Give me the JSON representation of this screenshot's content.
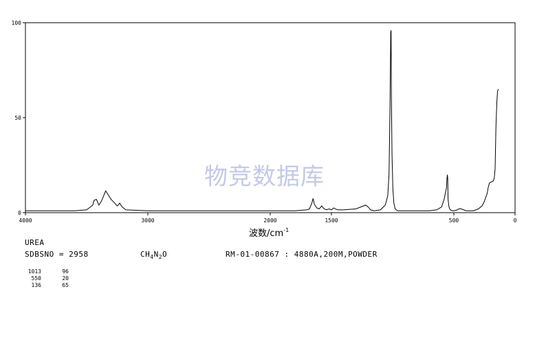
{
  "compound": "UREA",
  "sdbs": "SDBSNO = 2958",
  "formula": {
    "c": "CH",
    "h_sub": "4",
    "n": "N",
    "n_sub": "2",
    "o": "O"
  },
  "method": "RM-01-00867 : 4880A,200M,POWDER",
  "watermark": "物竞数据库",
  "peaks": [
    {
      "x": "1013",
      "y": "96"
    },
    {
      "x": "550",
      "y": "20"
    },
    {
      "x": "136",
      "y": "65"
    }
  ],
  "chart_data": {
    "type": "line",
    "title": "",
    "xlabel": "波数/cm",
    "xlabel_sup": "-1",
    "ylabel": "",
    "xlim": [
      4000,
      0
    ],
    "ylim": [
      0,
      100
    ],
    "x_ticks": [
      4000,
      3000,
      2000,
      1500,
      500,
      0
    ],
    "x_tick_labels": [
      "4000",
      "3000",
      "2000",
      "1500",
      "500",
      "0"
    ],
    "y_ticks": [
      0,
      50,
      100
    ],
    "y_tick_labels": [
      "0",
      "50",
      "100"
    ],
    "series": [
      {
        "x": [
          4000,
          3600,
          3500,
          3450,
          3440,
          3420,
          3400,
          3380,
          3360,
          3345,
          3330,
          3300,
          3270,
          3250,
          3230,
          3210,
          3180,
          3000,
          2500,
          2000,
          1800,
          1700,
          1680,
          1660,
          1650,
          1640,
          1620,
          1600,
          1580,
          1560,
          1540,
          1520,
          1500,
          1480,
          1470,
          1450,
          1400,
          1300,
          1220,
          1200,
          1180,
          1150,
          1100,
          1060,
          1040,
          1030,
          1022,
          1016,
          1013,
          1010,
          1005,
          998,
          990,
          980,
          960,
          900,
          800,
          700,
          640,
          600,
          580,
          570,
          560,
          556,
          553,
          550,
          547,
          540,
          530,
          510,
          500,
          470,
          460,
          440,
          400,
          340,
          300,
          270,
          250,
          240,
          228,
          220,
          210,
          200,
          180,
          170,
          163,
          156,
          149,
          143,
          136
        ],
        "y": [
          1,
          1,
          1.5,
          4,
          6.5,
          7,
          4,
          6,
          9,
          11.5,
          10,
          7,
          5,
          3.5,
          5,
          3,
          1.5,
          1,
          1,
          1,
          1,
          1.5,
          2,
          5,
          7.5,
          4.5,
          2.5,
          2,
          3.5,
          2,
          1.5,
          2,
          1.5,
          2.5,
          2,
          1.5,
          1.5,
          2,
          4,
          3,
          1.5,
          1,
          1.5,
          4,
          9,
          20,
          54,
          95,
          96,
          60,
          30,
          12,
          5,
          2,
          1,
          1,
          1,
          1,
          1.5,
          3,
          7,
          10,
          13,
          18,
          20,
          18,
          7,
          3,
          1.5,
          1,
          1,
          1.5,
          2,
          2,
          1,
          1,
          2,
          3.5,
          6,
          8,
          10,
          13,
          15.5,
          16,
          16.5,
          18,
          23,
          45,
          58,
          64,
          65
        ]
      }
    ]
  }
}
